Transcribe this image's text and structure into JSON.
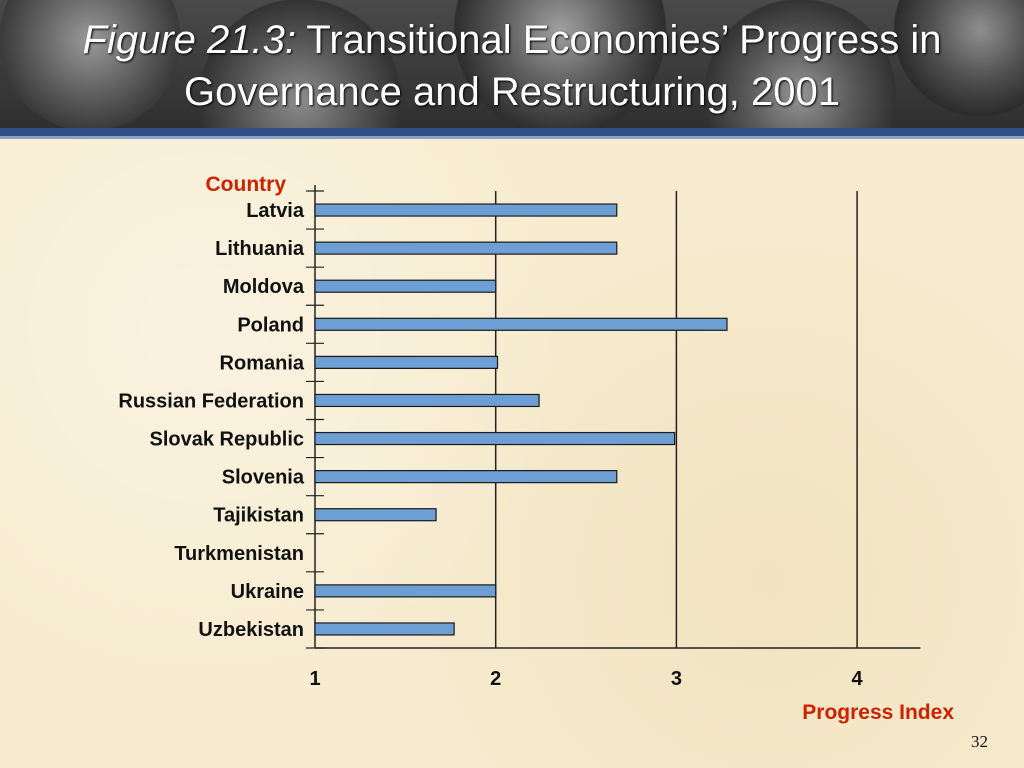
{
  "slide": {
    "title_prefix": "Figure 21.3:",
    "title_main": " Transitional Economies’ Progress  in",
    "title_line2": "Governance and Restructuring, 2001",
    "page_number": "32"
  },
  "colors": {
    "bar_fill": "#6e9fd4",
    "bar_stroke": "#1a1a1a",
    "axis_title": "#cc2200",
    "header_band": "#2f4f86"
  },
  "chart_data": {
    "type": "bar",
    "orientation": "horizontal",
    "categories": [
      "Latvia",
      "Lithuania",
      "Moldova",
      "Poland",
      "Romania",
      "Russian Federation",
      "Slovak Republic",
      "Slovenia",
      "Tajikistan",
      "Turkmenistan",
      "Ukraine",
      "Uzbekistan"
    ],
    "values": [
      2.67,
      2.67,
      2.0,
      3.28,
      2.01,
      2.24,
      2.99,
      2.67,
      1.67,
      null,
      2.0,
      1.77
    ],
    "ylabel": "Country",
    "xlabel": "Progress Index",
    "xlim": [
      1,
      4.35
    ],
    "xticks": [
      1,
      2,
      3,
      4
    ],
    "xtick_labels": [
      "1",
      "2",
      "3",
      "4"
    ],
    "vertical_gridlines": [
      2,
      3,
      4
    ],
    "legend": "none"
  }
}
